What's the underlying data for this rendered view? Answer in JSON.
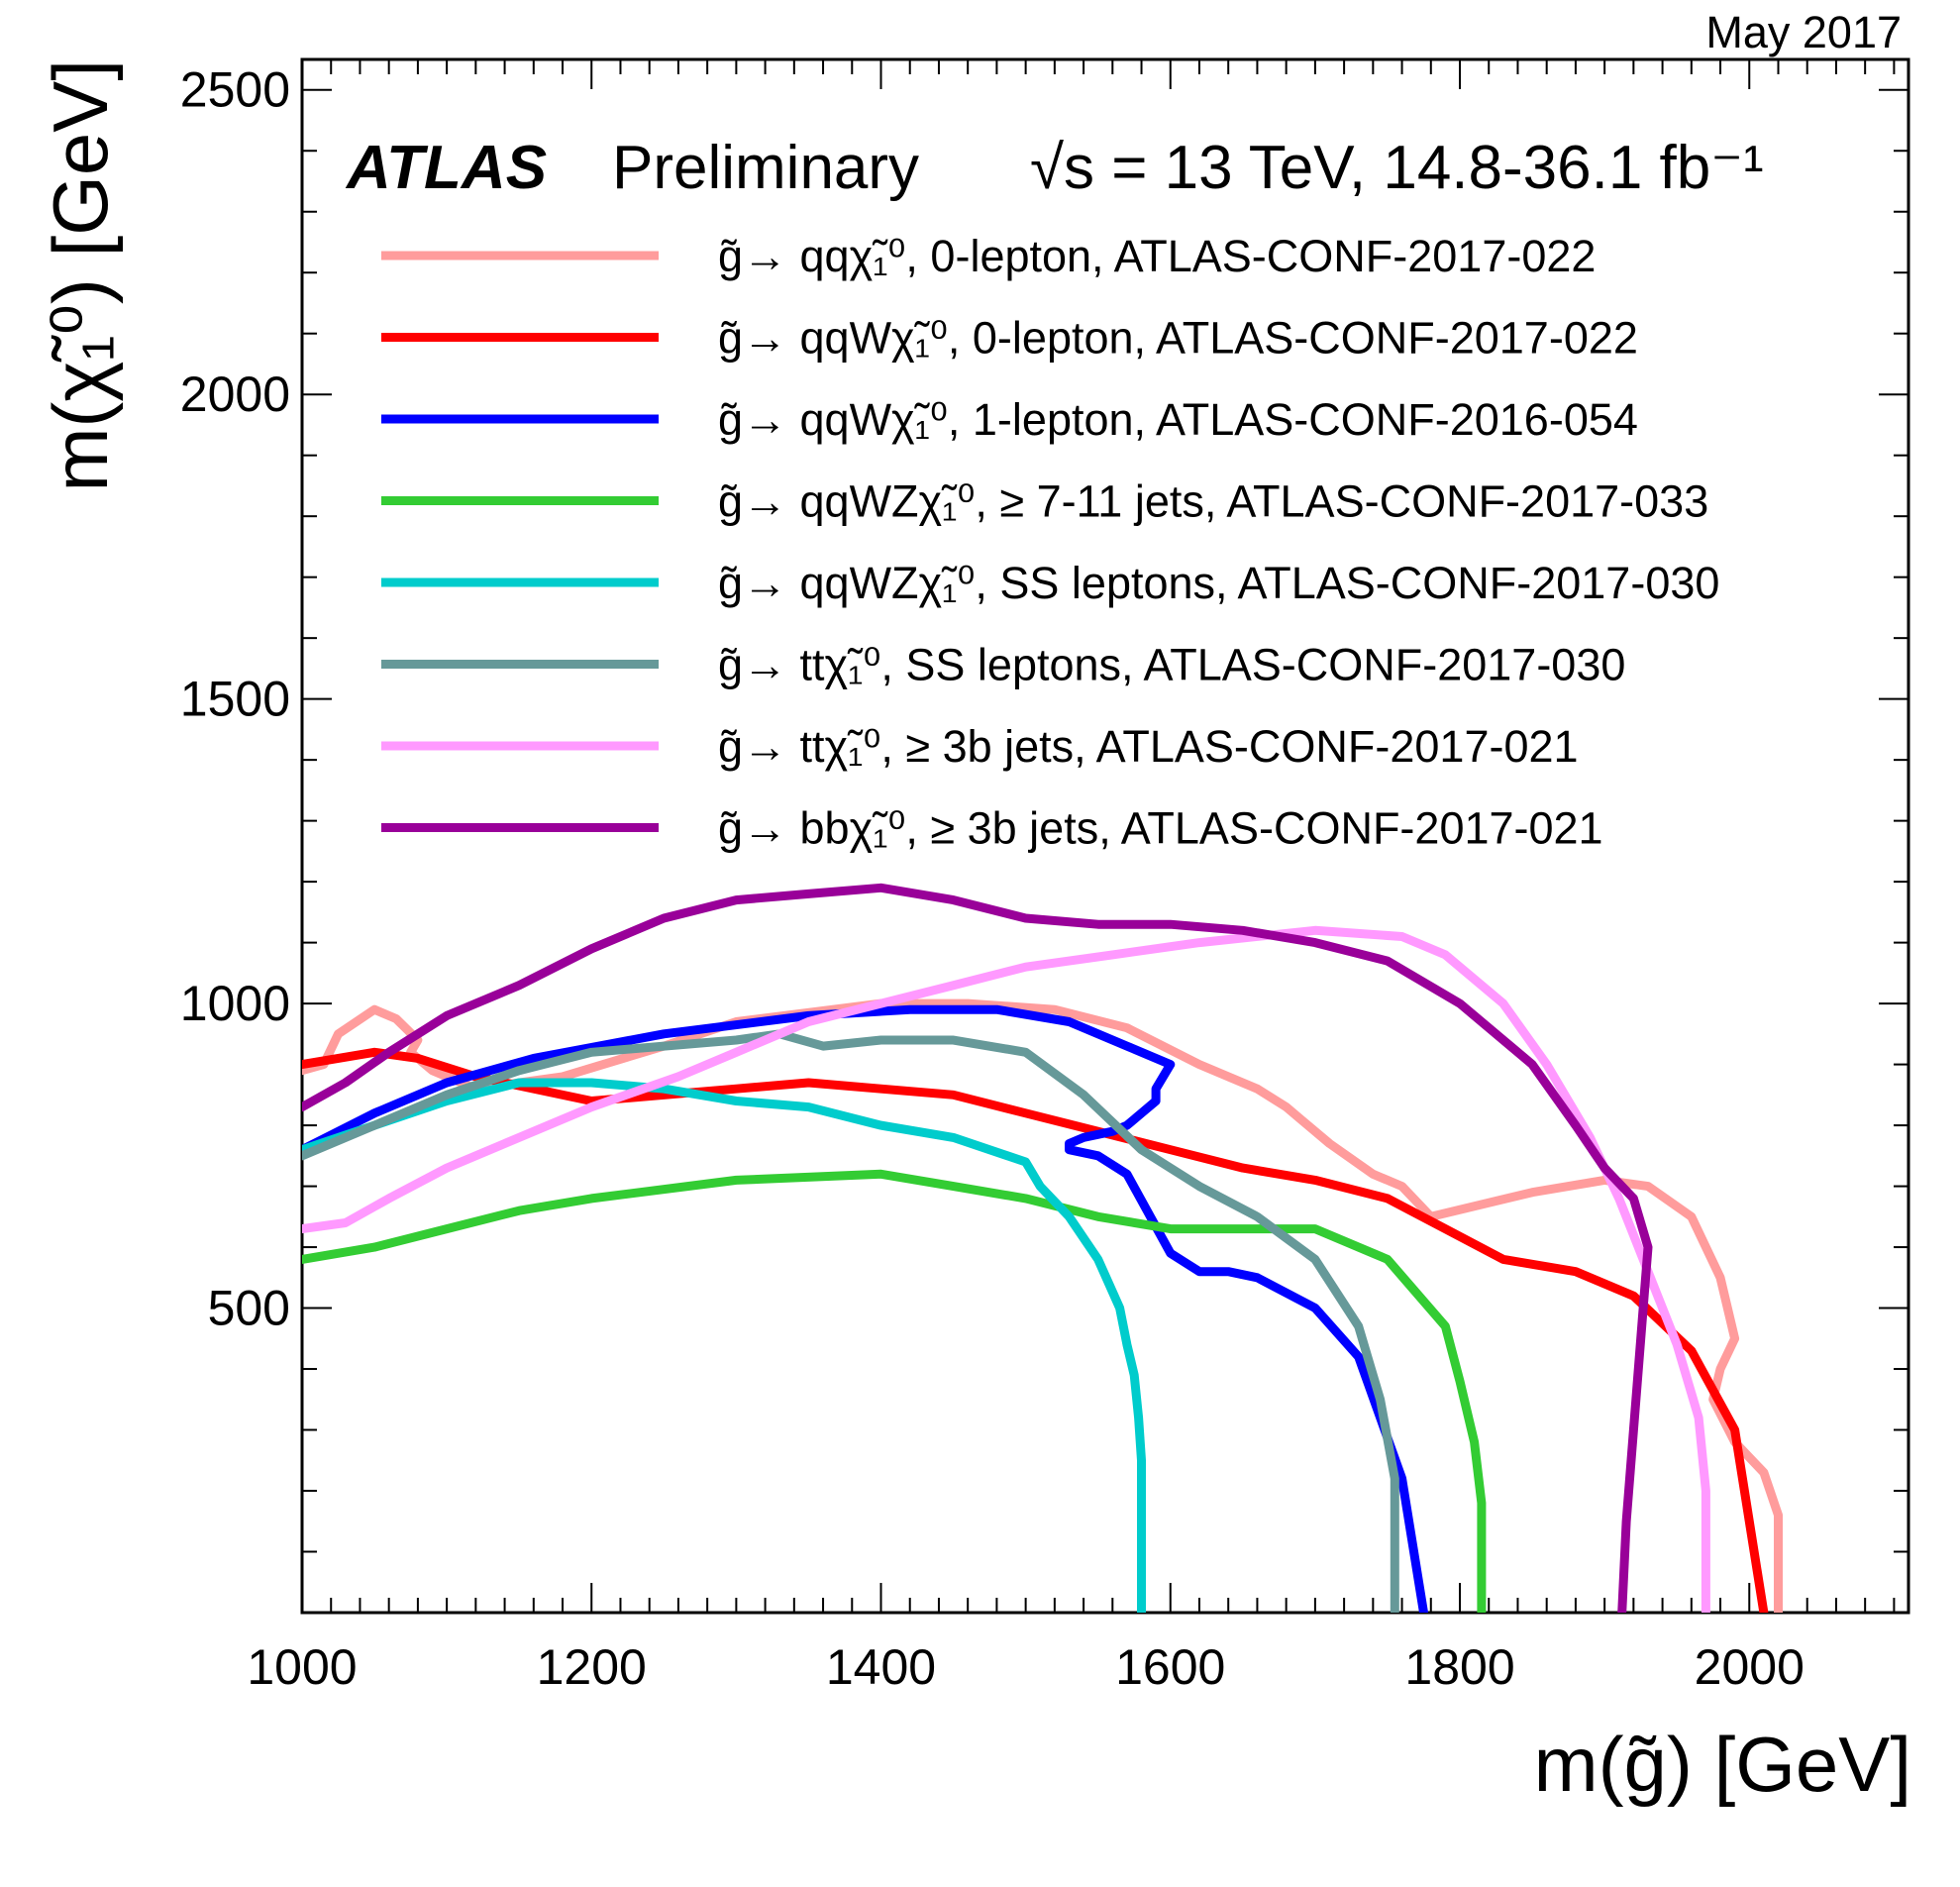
{
  "date_label": "May 2017",
  "experiment": "ATLAS",
  "status": "Preliminary",
  "energy_label": "√s = 13 TeV, 14.8-36.1 fb⁻¹",
  "chart_data": {
    "type": "line",
    "xlabel": "m(g̃) [GeV]",
    "ylabel": "m(χ̃₁⁰) [GeV]",
    "xlim": [
      1000,
      2110
    ],
    "ylim": [
      0,
      2550
    ],
    "x_ticks": [
      1000,
      1200,
      1400,
      1600,
      1800,
      2000
    ],
    "y_ticks": [
      500,
      1000,
      1500,
      2000,
      2500
    ],
    "legend_placement": "top",
    "series": [
      {
        "name": "g̃→ qqχ̃₁⁰, 0-lepton, ATLAS-CONF-2017-022",
        "color": "#ff9c9c",
        "x": [
          1000,
          1015,
          1025,
          1050,
          1065,
          1080,
          1075,
          1090,
          1120,
          1180,
          1250,
          1300,
          1400,
          1460,
          1520,
          1570,
          1620,
          1660,
          1680,
          1690,
          1710,
          1740,
          1760,
          1780,
          1850,
          1900,
          1930,
          1960,
          1980,
          1990,
          1980,
          1975,
          1990,
          2010,
          2020,
          2020
        ],
        "y": [
          890,
          900,
          950,
          990,
          975,
          940,
          920,
          890,
          860,
          880,
          930,
          970,
          1000,
          1000,
          990,
          960,
          900,
          860,
          830,
          810,
          770,
          720,
          700,
          650,
          690,
          710,
          700,
          650,
          550,
          450,
          400,
          350,
          280,
          230,
          160,
          0
        ]
      },
      {
        "name": "g̃→ qqWχ̃₁⁰, 0-lepton, ATLAS-CONF-2017-022",
        "color": "#ff0000",
        "x": [
          1000,
          1050,
          1080,
          1120,
          1200,
          1300,
          1350,
          1400,
          1450,
          1500,
          1550,
          1600,
          1650,
          1700,
          1750,
          1790,
          1830,
          1880,
          1920,
          1960,
          1990,
          2010
        ],
        "y": [
          900,
          920,
          910,
          880,
          840,
          860,
          870,
          860,
          850,
          820,
          790,
          760,
          730,
          710,
          680,
          630,
          580,
          560,
          520,
          430,
          300,
          0
        ]
      },
      {
        "name": "g̃→ qqWχ̃₁⁰, 1-lepton, ATLAS-CONF-2016-054",
        "color": "#0000ff",
        "x": [
          1000,
          1050,
          1100,
          1160,
          1250,
          1350,
          1420,
          1480,
          1530,
          1570,
          1600,
          1600,
          1590,
          1590,
          1580,
          1570,
          1560,
          1540,
          1530,
          1530,
          1550,
          1570,
          1600,
          1600,
          1620,
          1640,
          1660,
          1700,
          1730,
          1760,
          1775
        ],
        "y": [
          760,
          820,
          870,
          910,
          950,
          980,
          990,
          990,
          970,
          930,
          900,
          900,
          860,
          840,
          820,
          800,
          790,
          780,
          770,
          760,
          750,
          720,
          590,
          590,
          560,
          560,
          550,
          500,
          420,
          220,
          0
        ]
      },
      {
        "name": "g̃→ qqWZχ̃₁⁰, ≥ 7-11 jets, ATLAS-CONF-2017-033",
        "color": "#33cc33",
        "x": [
          1000,
          1050,
          1100,
          1150,
          1200,
          1300,
          1400,
          1450,
          1500,
          1550,
          1600,
          1650,
          1700,
          1750,
          1790,
          1800,
          1810,
          1815,
          1815
        ],
        "y": [
          580,
          600,
          630,
          660,
          680,
          710,
          720,
          700,
          680,
          650,
          630,
          630,
          630,
          580,
          470,
          380,
          280,
          180,
          0
        ]
      },
      {
        "name": "g̃→ qqWZχ̃₁⁰, SS leptons, ATLAS-CONF-2017-030",
        "color": "#00cccc",
        "x": [
          1000,
          1050,
          1100,
          1150,
          1200,
          1250,
          1300,
          1350,
          1400,
          1450,
          1500,
          1510,
          1530,
          1550,
          1565,
          1570,
          1575,
          1578,
          1580,
          1580
        ],
        "y": [
          760,
          800,
          840,
          870,
          870,
          860,
          840,
          830,
          800,
          780,
          740,
          700,
          650,
          580,
          500,
          440,
          390,
          320,
          250,
          0
        ]
      },
      {
        "name": "g̃→ ttχ̃₁⁰, SS leptons, ATLAS-CONF-2017-030",
        "color": "#669999",
        "x": [
          1000,
          1050,
          1100,
          1150,
          1200,
          1250,
          1300,
          1330,
          1360,
          1400,
          1450,
          1500,
          1540,
          1580,
          1620,
          1660,
          1700,
          1730,
          1745,
          1755,
          1755
        ],
        "y": [
          750,
          800,
          850,
          890,
          920,
          930,
          940,
          950,
          930,
          940,
          940,
          920,
          850,
          760,
          700,
          650,
          580,
          470,
          350,
          220,
          0
        ]
      },
      {
        "name": "g̃→ ttχ̃₁⁰, ≥ 3b jets, ATLAS-CONF-2017-021",
        "color": "#ff99ff",
        "x": [
          1000,
          1030,
          1060,
          1100,
          1140,
          1200,
          1260,
          1300,
          1350,
          1400,
          1450,
          1500,
          1560,
          1620,
          1700,
          1760,
          1790,
          1830,
          1860,
          1890,
          1910,
          1930,
          1950,
          1965,
          1970,
          1970
        ],
        "y": [
          630,
          640,
          680,
          730,
          770,
          830,
          880,
          920,
          970,
          1000,
          1030,
          1060,
          1080,
          1100,
          1120,
          1110,
          1080,
          1000,
          900,
          780,
          680,
          560,
          440,
          320,
          200,
          0
        ]
      },
      {
        "name": "g̃→ bbχ̃₁⁰, ≥ 3b jets, ATLAS-CONF-2017-021",
        "color": "#990099",
        "x": [
          1000,
          1030,
          1060,
          1100,
          1150,
          1200,
          1250,
          1300,
          1350,
          1400,
          1450,
          1500,
          1550,
          1600,
          1650,
          1700,
          1750,
          1800,
          1850,
          1880,
          1900,
          1920,
          1930,
          1925,
          1920,
          1915,
          1912
        ],
        "y": [
          830,
          870,
          920,
          980,
          1030,
          1090,
          1140,
          1170,
          1180,
          1190,
          1170,
          1140,
          1130,
          1130,
          1120,
          1100,
          1070,
          1000,
          900,
          800,
          730,
          680,
          600,
          450,
          300,
          150,
          0
        ]
      }
    ]
  }
}
